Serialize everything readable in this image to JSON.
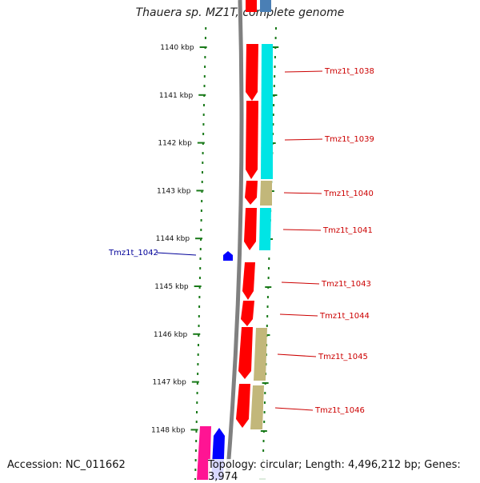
{
  "title": "Thauera sp. MZ1T, complete genome",
  "accession_text": "Accession: NC_011662",
  "topology_text": "Topology: circular; Length: 4,496,212 bp; Genes: 3,974",
  "colors": {
    "backbone": "#808080",
    "tick": "#1a7a1a",
    "cds": "#ff0000",
    "cyan": "#00e5e5",
    "khaki": "#c2b77a",
    "blue": "#0000ff",
    "magenta": "#ff1493",
    "label_red": "#cc0000",
    "label_blue": "#000099"
  },
  "ruler_labels": [
    "1140 kbp",
    "1141 kbp",
    "1142 kbp",
    "1143 kbp",
    "1144 kbp",
    "1145 kbp",
    "1146 kbp",
    "1147 kbp",
    "1148 kbp"
  ],
  "gene_labels": [
    {
      "text": "Tmz1t_1038",
      "color": "red"
    },
    {
      "text": "Tmz1t_1039",
      "color": "red"
    },
    {
      "text": "Tmz1t_1040",
      "color": "red"
    },
    {
      "text": "Tmz1t_1041",
      "color": "red"
    },
    {
      "text": "Tmz1t_1042",
      "color": "blue"
    },
    {
      "text": "Tmz1t_1043",
      "color": "red"
    },
    {
      "text": "Tmz1t_1044",
      "color": "red"
    },
    {
      "text": "Tmz1t_1045",
      "color": "red"
    },
    {
      "text": "Tmz1t_1046",
      "color": "red"
    }
  ]
}
